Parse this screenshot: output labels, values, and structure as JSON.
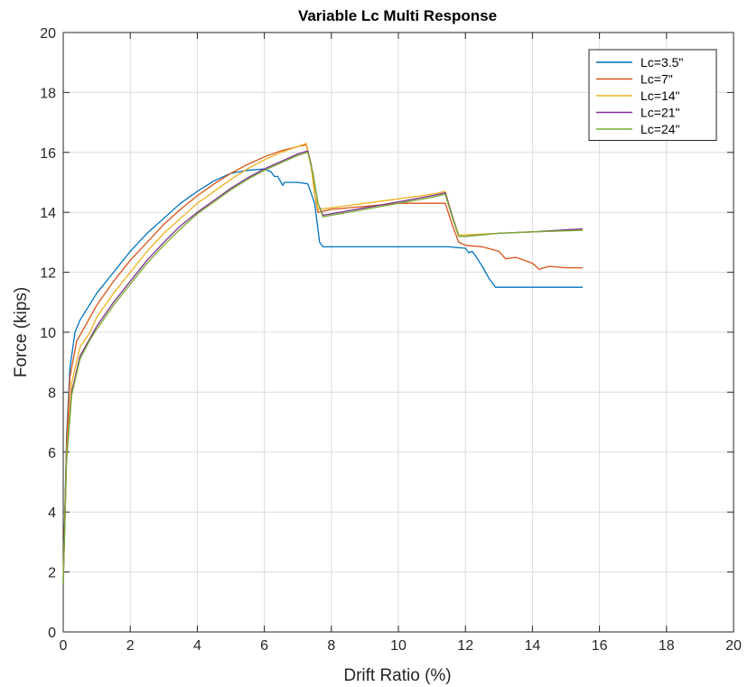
{
  "chart_data": {
    "type": "line",
    "title": "Variable Lc Multi Response",
    "xlabel": "Drift Ratio (%)",
    "ylabel": "Force (kips)",
    "xlim": [
      0,
      20
    ],
    "ylim": [
      0,
      20
    ],
    "xticks": [
      0,
      2,
      4,
      6,
      8,
      10,
      12,
      14,
      16,
      18,
      20
    ],
    "yticks": [
      0,
      2,
      4,
      6,
      8,
      10,
      12,
      14,
      16,
      18,
      20
    ],
    "grid": true,
    "legend_position": "top-right",
    "series": [
      {
        "name": "Lc=3.5\"",
        "color": "#0072BD",
        "points": [
          [
            0,
            1.7
          ],
          [
            0.1,
            6.5
          ],
          [
            0.2,
            8.8
          ],
          [
            0.35,
            10.0
          ],
          [
            0.5,
            10.4
          ],
          [
            1.0,
            11.3
          ],
          [
            1.5,
            12.0
          ],
          [
            2.0,
            12.7
          ],
          [
            2.5,
            13.3
          ],
          [
            3.0,
            13.8
          ],
          [
            3.5,
            14.3
          ],
          [
            4.0,
            14.7
          ],
          [
            4.5,
            15.05
          ],
          [
            5.0,
            15.3
          ],
          [
            5.5,
            15.4
          ],
          [
            6.0,
            15.45
          ],
          [
            6.2,
            15.35
          ],
          [
            6.3,
            15.2
          ],
          [
            6.4,
            15.2
          ],
          [
            6.5,
            15.0
          ],
          [
            6.55,
            14.9
          ],
          [
            6.6,
            15.0
          ],
          [
            7.0,
            15.0
          ],
          [
            7.3,
            14.95
          ],
          [
            7.5,
            14.3
          ],
          [
            7.65,
            13.0
          ],
          [
            7.75,
            12.85
          ],
          [
            8.5,
            12.85
          ],
          [
            10.0,
            12.85
          ],
          [
            11.5,
            12.85
          ],
          [
            12.0,
            12.8
          ],
          [
            12.1,
            12.65
          ],
          [
            12.2,
            12.7
          ],
          [
            12.3,
            12.55
          ],
          [
            12.5,
            12.2
          ],
          [
            12.7,
            11.8
          ],
          [
            12.9,
            11.5
          ],
          [
            13.5,
            11.5
          ],
          [
            15.5,
            11.5
          ]
        ]
      },
      {
        "name": "Lc=7\"",
        "color": "#D95319",
        "points": [
          [
            0,
            1.8
          ],
          [
            0.1,
            6.2
          ],
          [
            0.2,
            8.5
          ],
          [
            0.4,
            9.7
          ],
          [
            0.6,
            10.1
          ],
          [
            1.0,
            10.9
          ],
          [
            1.5,
            11.7
          ],
          [
            2.0,
            12.4
          ],
          [
            2.5,
            13.0
          ],
          [
            3.0,
            13.6
          ],
          [
            3.5,
            14.1
          ],
          [
            4.0,
            14.55
          ],
          [
            4.5,
            14.95
          ],
          [
            5.0,
            15.3
          ],
          [
            5.5,
            15.6
          ],
          [
            6.0,
            15.85
          ],
          [
            6.5,
            16.05
          ],
          [
            7.0,
            16.2
          ],
          [
            7.25,
            16.25
          ],
          [
            7.4,
            15.6
          ],
          [
            7.5,
            14.6
          ],
          [
            7.6,
            14.0
          ],
          [
            8.0,
            14.1
          ],
          [
            9.0,
            14.2
          ],
          [
            10.0,
            14.3
          ],
          [
            11.0,
            14.3
          ],
          [
            11.4,
            14.3
          ],
          [
            11.6,
            13.6
          ],
          [
            11.8,
            13.0
          ],
          [
            12.0,
            12.9
          ],
          [
            12.5,
            12.85
          ],
          [
            13.0,
            12.7
          ],
          [
            13.2,
            12.45
          ],
          [
            13.5,
            12.5
          ],
          [
            14.0,
            12.3
          ],
          [
            14.2,
            12.1
          ],
          [
            14.5,
            12.2
          ],
          [
            15.0,
            12.15
          ],
          [
            15.5,
            12.15
          ]
        ]
      },
      {
        "name": "Lc=14\"",
        "color": "#EDB120",
        "points": [
          [
            0,
            1.7
          ],
          [
            0.1,
            6.0
          ],
          [
            0.25,
            8.3
          ],
          [
            0.5,
            9.5
          ],
          [
            0.8,
            10.0
          ],
          [
            1.0,
            10.5
          ],
          [
            1.5,
            11.3
          ],
          [
            2.0,
            12.0
          ],
          [
            2.5,
            12.7
          ],
          [
            3.0,
            13.3
          ],
          [
            3.5,
            13.8
          ],
          [
            4.0,
            14.3
          ],
          [
            4.5,
            14.7
          ],
          [
            5.0,
            15.1
          ],
          [
            5.5,
            15.45
          ],
          [
            6.0,
            15.75
          ],
          [
            6.5,
            16.0
          ],
          [
            7.0,
            16.2
          ],
          [
            7.25,
            16.3
          ],
          [
            7.4,
            15.5
          ],
          [
            7.5,
            14.6
          ],
          [
            7.6,
            14.1
          ],
          [
            8.0,
            14.15
          ],
          [
            9.0,
            14.3
          ],
          [
            10.0,
            14.45
          ],
          [
            11.0,
            14.6
          ],
          [
            11.4,
            14.7
          ],
          [
            11.6,
            13.9
          ],
          [
            11.8,
            13.25
          ],
          [
            12.0,
            13.25
          ],
          [
            13.0,
            13.3
          ],
          [
            14.0,
            13.35
          ],
          [
            15.5,
            13.4
          ]
        ]
      },
      {
        "name": "Lc=21\"",
        "color": "#7E2F8E",
        "points": [
          [
            0,
            1.6
          ],
          [
            0.1,
            5.8
          ],
          [
            0.25,
            8.0
          ],
          [
            0.5,
            9.2
          ],
          [
            0.8,
            9.8
          ],
          [
            1.0,
            10.2
          ],
          [
            1.5,
            11.0
          ],
          [
            2.0,
            11.7
          ],
          [
            2.5,
            12.4
          ],
          [
            3.0,
            13.0
          ],
          [
            3.5,
            13.55
          ],
          [
            4.0,
            14.0
          ],
          [
            4.5,
            14.4
          ],
          [
            5.0,
            14.8
          ],
          [
            5.5,
            15.15
          ],
          [
            6.0,
            15.45
          ],
          [
            6.5,
            15.7
          ],
          [
            7.0,
            15.95
          ],
          [
            7.3,
            16.05
          ],
          [
            7.45,
            15.3
          ],
          [
            7.6,
            14.3
          ],
          [
            7.75,
            13.9
          ],
          [
            8.0,
            13.95
          ],
          [
            9.0,
            14.15
          ],
          [
            10.0,
            14.35
          ],
          [
            11.0,
            14.55
          ],
          [
            11.4,
            14.65
          ],
          [
            11.6,
            13.9
          ],
          [
            11.8,
            13.2
          ],
          [
            12.0,
            13.2
          ],
          [
            13.0,
            13.3
          ],
          [
            14.0,
            13.35
          ],
          [
            15.5,
            13.45
          ]
        ]
      },
      {
        "name": "Lc=24\"",
        "color": "#77AC30",
        "points": [
          [
            0,
            1.6
          ],
          [
            0.1,
            5.7
          ],
          [
            0.25,
            7.9
          ],
          [
            0.5,
            9.1
          ],
          [
            0.8,
            9.75
          ],
          [
            1.0,
            10.1
          ],
          [
            1.5,
            10.9
          ],
          [
            2.0,
            11.6
          ],
          [
            2.5,
            12.3
          ],
          [
            3.0,
            12.9
          ],
          [
            3.5,
            13.45
          ],
          [
            4.0,
            13.95
          ],
          [
            4.5,
            14.35
          ],
          [
            5.0,
            14.75
          ],
          [
            5.5,
            15.1
          ],
          [
            6.0,
            15.4
          ],
          [
            6.5,
            15.65
          ],
          [
            7.0,
            15.9
          ],
          [
            7.3,
            16.0
          ],
          [
            7.45,
            15.3
          ],
          [
            7.6,
            14.3
          ],
          [
            7.75,
            13.85
          ],
          [
            8.0,
            13.9
          ],
          [
            9.0,
            14.1
          ],
          [
            10.0,
            14.3
          ],
          [
            11.0,
            14.5
          ],
          [
            11.4,
            14.6
          ],
          [
            11.6,
            13.85
          ],
          [
            11.8,
            13.2
          ],
          [
            12.0,
            13.2
          ],
          [
            13.0,
            13.3
          ],
          [
            14.0,
            13.35
          ],
          [
            15.5,
            13.4
          ]
        ]
      }
    ]
  }
}
